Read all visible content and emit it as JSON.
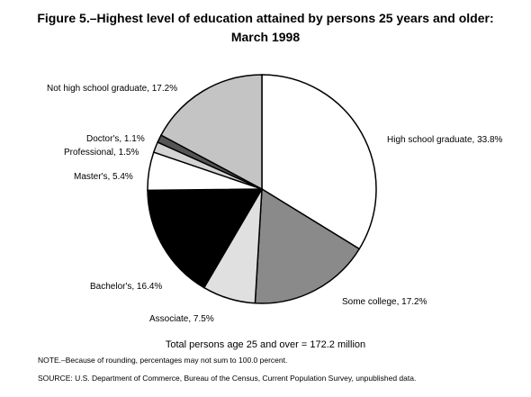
{
  "chart_data": {
    "type": "pie",
    "title": [
      "Figure 5.–Highest level of education attained by persons 25 years and older:",
      "March 1998"
    ],
    "values": [
      33.8,
      17.2,
      7.5,
      16.4,
      5.4,
      1.5,
      1.1,
      17.2
    ],
    "value_labels": [
      "High school graduate, 33.8%",
      "Some college, 17.2%",
      "Associate, 7.5%",
      "Bachelor's, 16.4%",
      "Master's, 5.4%",
      "Professional, 1.5%",
      "Doctor's, 1.1%",
      "Not high school graduate, 17.2%"
    ],
    "colors": [
      "#ffffff",
      "#8a8a8a",
      "#e0e0e0",
      "#000000",
      "#ffffff",
      "#d4d4d4",
      "#555555",
      "#c4c4c4"
    ],
    "total_note": "Total persons age 25 and over = 172.2 million",
    "notes": [
      "NOTE.–Because of rounding, percentages may not sum to 100.0 percent.",
      "SOURCE:  U.S. Department of Commerce, Bureau of the Census, Current Population Survey, unpublished data."
    ]
  }
}
